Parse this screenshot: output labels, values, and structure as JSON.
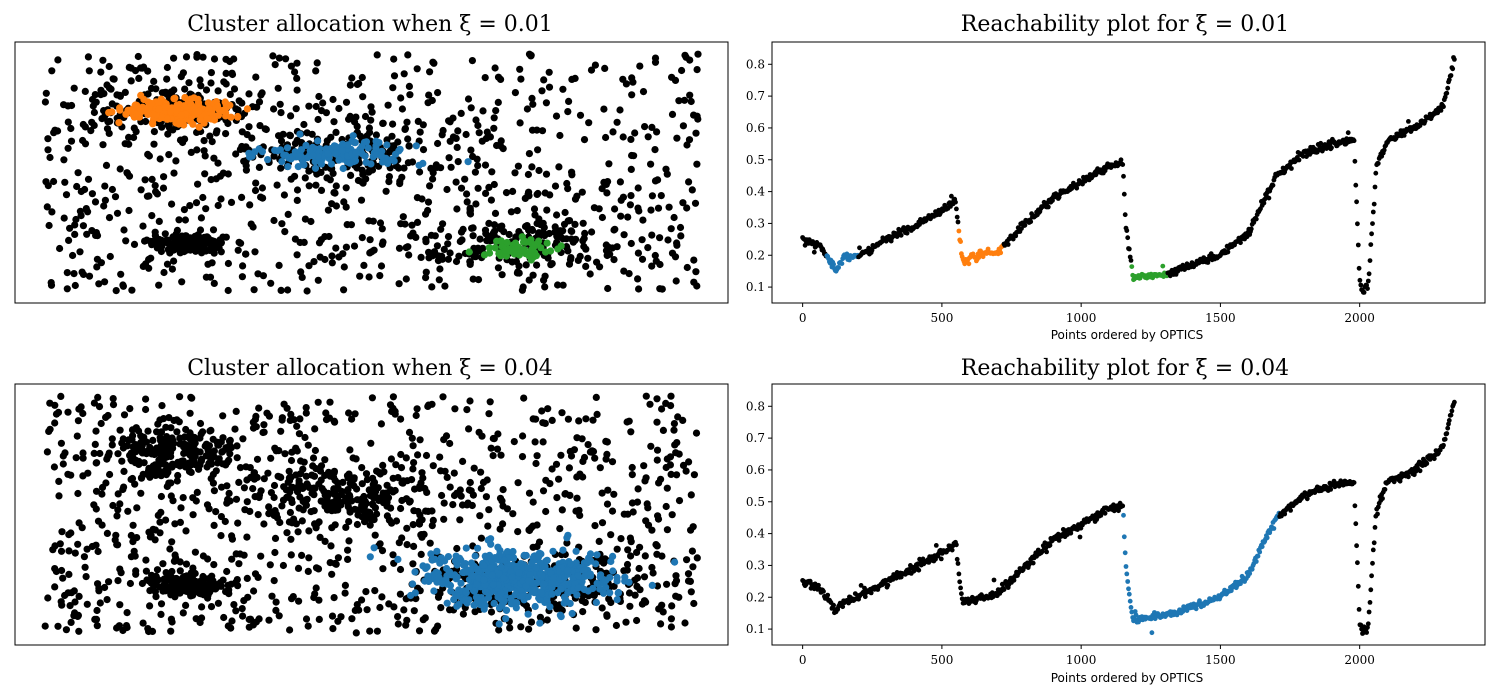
{
  "colors": {
    "noise": "#000000",
    "cluster_blue": "#1f77b4",
    "cluster_orange": "#ff7f0e",
    "cluster_green": "#2ca02c"
  },
  "chart_data": [
    {
      "type": "scatter",
      "title": "Cluster allocation when ξ = 0.01",
      "axes_visible": false,
      "noise_points": 1400,
      "clusters": [
        {
          "color": "#ff7f0e",
          "center": [
            0.2,
            0.76
          ],
          "spread": [
            0.045,
            0.025
          ],
          "points": 220
        },
        {
          "color": "#1f77b4",
          "center": [
            0.45,
            0.58
          ],
          "spread": [
            0.055,
            0.025
          ],
          "points": 150
        },
        {
          "color": "#2ca02c",
          "center": [
            0.73,
            0.18
          ],
          "spread": [
            0.03,
            0.02
          ],
          "points": 60
        }
      ]
    },
    {
      "type": "scatter",
      "title": "Reachability plot for ξ = 0.01",
      "xlabel": "Points ordered by OPTICS",
      "xlim": [
        -110,
        2450
      ],
      "ylim": [
        0.05,
        0.87
      ],
      "xticks": [
        0,
        500,
        1000,
        1500,
        2000
      ],
      "yticks": [
        0.1,
        0.2,
        0.3,
        0.4,
        0.5,
        0.6,
        0.7,
        0.8
      ],
      "curve": {
        "x": [
          0,
          30,
          60,
          90,
          120,
          150,
          200,
          300,
          400,
          500,
          550,
          560,
          575,
          600,
          700,
          800,
          900,
          1000,
          1100,
          1150,
          1160,
          1185,
          1300,
          1400,
          1500,
          1600,
          1700,
          1800,
          1900,
          1980,
          2000,
          2010,
          2030,
          2060,
          2100,
          2200,
          2300,
          2340
        ],
        "y": [
          0.25,
          0.24,
          0.23,
          0.19,
          0.16,
          0.19,
          0.2,
          0.25,
          0.29,
          0.34,
          0.37,
          0.28,
          0.18,
          0.19,
          0.21,
          0.3,
          0.38,
          0.43,
          0.48,
          0.49,
          0.3,
          0.13,
          0.14,
          0.17,
          0.2,
          0.27,
          0.45,
          0.52,
          0.55,
          0.56,
          0.12,
          0.09,
          0.1,
          0.48,
          0.56,
          0.6,
          0.67,
          0.82
        ]
      },
      "highlights": [
        {
          "color": "#1f77b4",
          "range": [
            85,
            200
          ]
        },
        {
          "color": "#ff7f0e",
          "range": [
            560,
            720
          ]
        },
        {
          "color": "#2ca02c",
          "range": [
            1180,
            1310
          ]
        }
      ]
    },
    {
      "type": "scatter",
      "title": "Cluster allocation when ξ = 0.04",
      "axes_visible": false,
      "noise_points": 1700,
      "clusters": [
        {
          "color": "#1f77b4",
          "center": [
            0.72,
            0.23
          ],
          "spread": [
            0.07,
            0.06
          ],
          "points": 520
        }
      ]
    },
    {
      "type": "scatter",
      "title": "Reachability plot for ξ = 0.04",
      "xlabel": "Points ordered by OPTICS",
      "xlim": [
        -110,
        2450
      ],
      "ylim": [
        0.05,
        0.87
      ],
      "xticks": [
        0,
        500,
        1000,
        1500,
        2000
      ],
      "yticks": [
        0.1,
        0.2,
        0.3,
        0.4,
        0.5,
        0.6,
        0.7,
        0.8
      ],
      "curve": {
        "x": [
          0,
          30,
          60,
          90,
          120,
          150,
          200,
          300,
          400,
          500,
          550,
          560,
          575,
          600,
          700,
          800,
          900,
          1000,
          1100,
          1150,
          1160,
          1185,
          1300,
          1400,
          1500,
          1600,
          1700,
          1800,
          1900,
          1980,
          2000,
          2010,
          2030,
          2060,
          2100,
          2200,
          2300,
          2340
        ],
        "y": [
          0.25,
          0.24,
          0.23,
          0.19,
          0.16,
          0.19,
          0.2,
          0.25,
          0.29,
          0.34,
          0.37,
          0.28,
          0.18,
          0.19,
          0.21,
          0.3,
          0.38,
          0.43,
          0.48,
          0.49,
          0.3,
          0.13,
          0.14,
          0.17,
          0.2,
          0.27,
          0.45,
          0.52,
          0.55,
          0.56,
          0.12,
          0.09,
          0.1,
          0.48,
          0.56,
          0.6,
          0.67,
          0.82
        ]
      },
      "highlights": [
        {
          "color": "#1f77b4",
          "range": [
            1150,
            1710
          ]
        }
      ]
    }
  ]
}
